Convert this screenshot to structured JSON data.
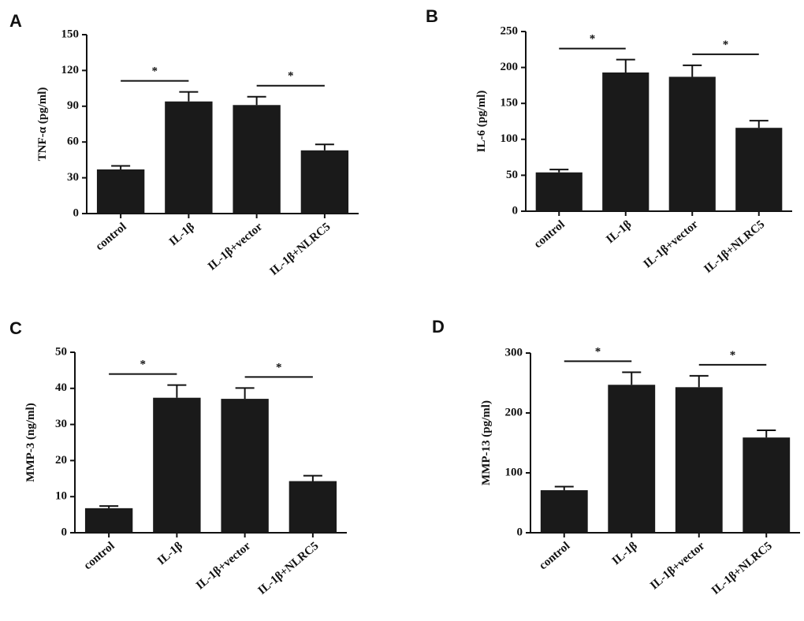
{
  "chart_data": [
    {
      "type": "bar",
      "panel": "A",
      "ylabel": "TNF-α (pg/ml)",
      "categories": [
        "control",
        "IL-1β",
        "IL-1β+vector",
        "IL-1β+NLRC5"
      ],
      "values": [
        37,
        94,
        91,
        53
      ],
      "errors": [
        3,
        8,
        7,
        5
      ],
      "color": "#1a1a1a",
      "ylim": [
        0,
        150
      ],
      "yticks": [
        0,
        30,
        60,
        90,
        120,
        150
      ],
      "significance": [
        {
          "label": "*",
          "between": [
            0,
            1
          ]
        },
        {
          "label": "*",
          "between": [
            2,
            3
          ]
        }
      ]
    },
    {
      "type": "bar",
      "panel": "B",
      "ylabel": "IL-6 (pg/ml)",
      "categories": [
        "control",
        "IL-1β",
        "IL-1β+vector",
        "IL-1β+NLRC5"
      ],
      "values": [
        54,
        193,
        187,
        116
      ],
      "errors": [
        4,
        18,
        16,
        10
      ],
      "color": "#1a1a1a",
      "ylim": [
        0,
        250
      ],
      "yticks": [
        0,
        50,
        100,
        150,
        200,
        250
      ],
      "significance": [
        {
          "label": "*",
          "between": [
            0,
            1
          ]
        },
        {
          "label": "*",
          "between": [
            2,
            3
          ]
        }
      ]
    },
    {
      "type": "bar",
      "panel": "C",
      "ylabel": "MMP-3 (ng/ml)",
      "categories": [
        "control",
        "IL-1β",
        "IL-1β+vector",
        "IL-1β+NLRC5"
      ],
      "values": [
        6.8,
        37.4,
        37.1,
        14.3
      ],
      "errors": [
        0.6,
        3.5,
        3,
        1.5
      ],
      "color": "#1a1a1a",
      "ylim": [
        0,
        50
      ],
      "yticks": [
        0,
        10,
        20,
        30,
        40,
        50
      ],
      "significance": [
        {
          "label": "*",
          "between": [
            0,
            1
          ]
        },
        {
          "label": "*",
          "between": [
            2,
            3
          ]
        }
      ]
    },
    {
      "type": "bar",
      "panel": "D",
      "ylabel": "MMP-13 (pg/ml)",
      "categories": [
        "control",
        "IL-1β",
        "IL-1β+vector",
        "IL-1β+NLRC5"
      ],
      "values": [
        71,
        247,
        243,
        159
      ],
      "errors": [
        6,
        21,
        19,
        12
      ],
      "color": "#1a1a1a",
      "ylim": [
        0,
        300
      ],
      "yticks": [
        0,
        100,
        200,
        300
      ],
      "significance": [
        {
          "label": "*",
          "between": [
            0,
            1
          ]
        },
        {
          "label": "*",
          "between": [
            2,
            3
          ]
        }
      ]
    }
  ]
}
